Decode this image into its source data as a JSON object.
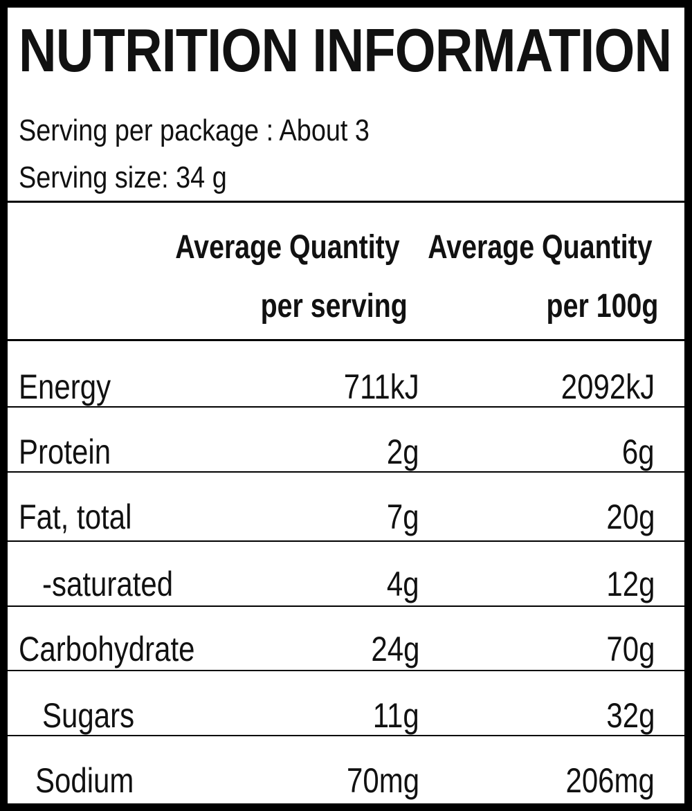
{
  "label": {
    "title": "NUTRITION INFORMATION",
    "servings_per_package": "Serving per package : About 3",
    "serving_size": "Serving size: 34 g"
  },
  "columns": {
    "per_serving_line1": "Average Quantity",
    "per_serving_line2": "per serving",
    "per_100g_line1": "Average Quantity",
    "per_100g_line2": "per 100g"
  },
  "rows": [
    {
      "name": "Energy",
      "per_serving": "711kJ",
      "per_100g": "2092kJ"
    },
    {
      "name": "Protein",
      "per_serving": "2g",
      "per_100g": "6g"
    },
    {
      "name": "Fat, total",
      "per_serving": "7g",
      "per_100g": "20g"
    },
    {
      "name": "-saturated",
      "per_serving": "4g",
      "per_100g": "12g"
    },
    {
      "name": "Carbohydrate",
      "per_serving": "24g",
      "per_100g": "70g"
    },
    {
      "name": "Sugars",
      "per_serving": "11g",
      "per_100g": "32g"
    },
    {
      "name": "Sodium",
      "per_serving": "70mg",
      "per_100g": "206mg"
    }
  ],
  "colors": {
    "ink": "#111111",
    "border": "#000000",
    "background": "#ffffff"
  }
}
